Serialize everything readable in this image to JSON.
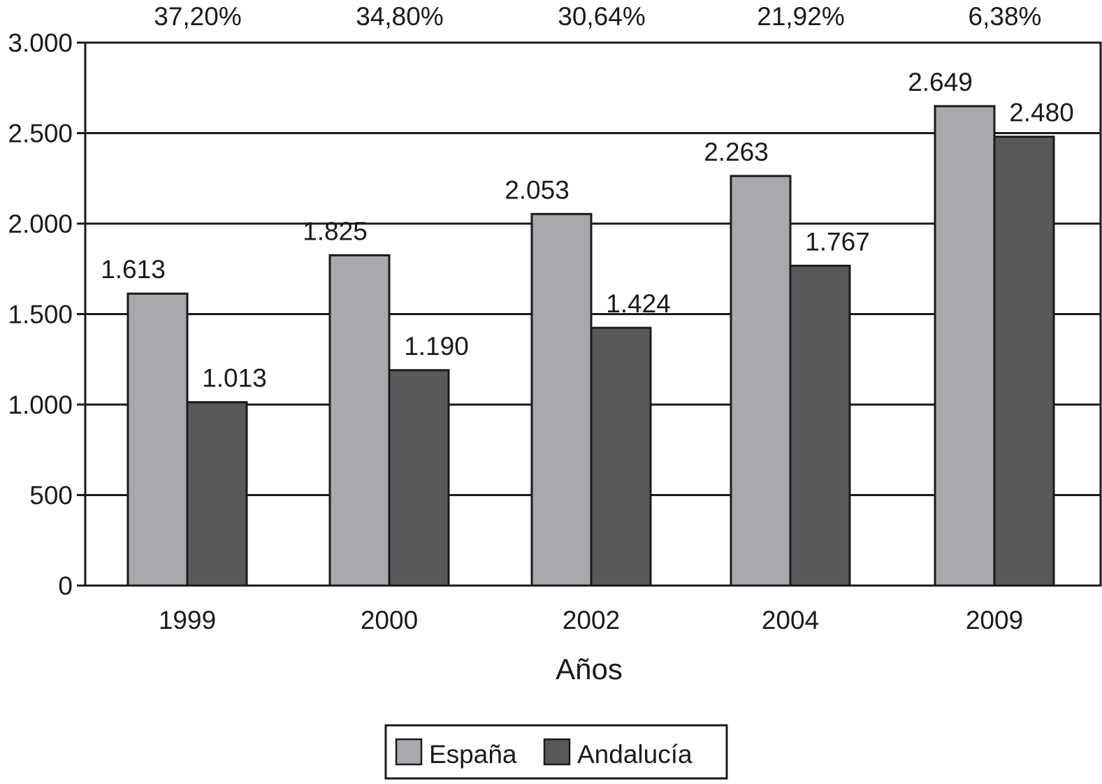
{
  "chart_data": {
    "type": "bar",
    "categories": [
      "1999",
      "2000",
      "2002",
      "2004",
      "2009"
    ],
    "series": [
      {
        "name": "España",
        "values": [
          1613,
          1825,
          2053,
          2263,
          2649
        ],
        "labels": [
          "1.613",
          "1.825",
          "2.053",
          "2.263",
          "2.649"
        ],
        "color": "#a7a9ac"
      },
      {
        "name": "Andalucía",
        "values": [
          1013,
          1190,
          1424,
          1767,
          2480
        ],
        "labels": [
          "1.013",
          "1.190",
          "1.424",
          "1.767",
          "2.480"
        ],
        "color": "#58595b"
      }
    ],
    "top_labels": [
      "37,20%",
      "34,80%",
      "30,64%",
      "21,92%",
      "6,38%"
    ],
    "xlabel": "Años",
    "ylabel": "",
    "ylim": [
      0,
      3000
    ],
    "yticks": [
      0,
      500,
      1000,
      1500,
      2000,
      2500,
      3000
    ],
    "ytick_labels": [
      "0",
      "500",
      "1.000",
      "1.500",
      "2.000",
      "2.500",
      "3.000"
    ],
    "grid": true,
    "legend_position": "bottom"
  }
}
